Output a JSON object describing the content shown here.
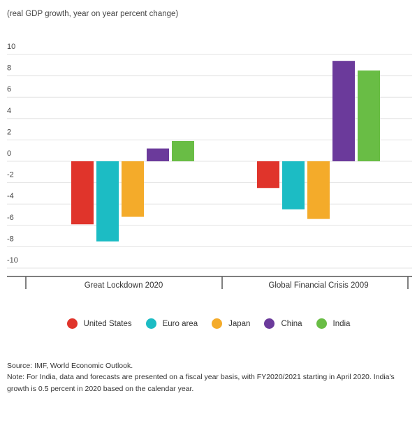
{
  "subtitle": "(real GDP growth, year on year percent change)",
  "colors": {
    "united_states": "#e0342b",
    "euro_area": "#1cbcc4",
    "japan": "#f4ab2a",
    "china": "#6b3a9b",
    "india": "#69bd45"
  },
  "chart_data": {
    "type": "bar",
    "title": "",
    "ylabel": "(real GDP growth, year on year percent change)",
    "ylim": [
      -10,
      10
    ],
    "yticks": [
      10,
      8,
      6,
      4,
      2,
      0,
      -2,
      -4,
      -6,
      -8,
      -10
    ],
    "ytick_labels": [
      "10",
      "8",
      "6",
      "4",
      "2",
      "0",
      "-2",
      "-4",
      "-6",
      "-8",
      "-10"
    ],
    "grid": true,
    "legend_position": "bottom",
    "categories": [
      "Great Lockdown 2020",
      "Global Financial Crisis 2009"
    ],
    "series": [
      {
        "name": "United States",
        "color": "#e0342b",
        "values": [
          -5.9,
          -2.5
        ]
      },
      {
        "name": "Euro area",
        "color": "#1cbcc4",
        "values": [
          -7.5,
          -4.5
        ]
      },
      {
        "name": "Japan",
        "color": "#f4ab2a",
        "values": [
          -5.2,
          -5.4
        ]
      },
      {
        "name": "China",
        "color": "#6b3a9b",
        "values": [
          1.2,
          9.4
        ]
      },
      {
        "name": "India",
        "color": "#69bd45",
        "values": [
          1.9,
          8.5
        ]
      }
    ]
  },
  "legend": [
    {
      "label": "United States",
      "color": "#e0342b"
    },
    {
      "label": "Euro area",
      "color": "#1cbcc4"
    },
    {
      "label": "Japan",
      "color": "#f4ab2a"
    },
    {
      "label": "China",
      "color": "#6b3a9b"
    },
    {
      "label": "India",
      "color": "#69bd45"
    }
  ],
  "source": "Source: IMF, World Economic Outlook.",
  "note": "Note: For India, data and forecasts are presented on a fiscal year basis, with FY2020/2021 starting in April 2020. India's growth is 0.5 percent in 2020 based on the calendar year."
}
